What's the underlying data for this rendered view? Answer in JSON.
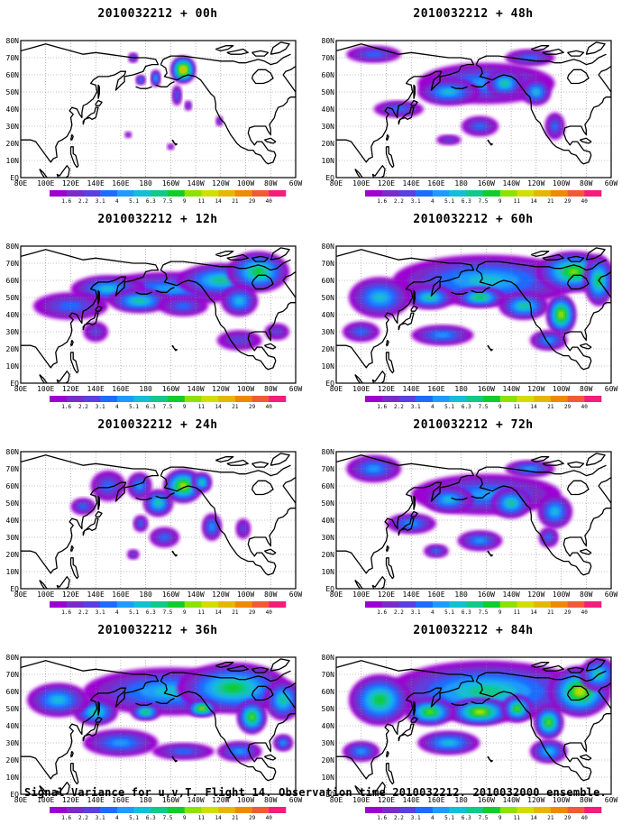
{
  "panels": [
    {
      "title": "2010032212 + 00h",
      "level": 0
    },
    {
      "title": "2010032212 + 48h",
      "level": 4
    },
    {
      "title": "2010032212 + 12h",
      "level": 1
    },
    {
      "title": "2010032212 + 60h",
      "level": 5
    },
    {
      "title": "2010032212 + 24h",
      "level": 2
    },
    {
      "title": "2010032212 + 72h",
      "level": 6
    },
    {
      "title": "2010032212 + 36h",
      "level": 3
    },
    {
      "title": "2010032212 + 84h",
      "level": 7
    }
  ],
  "lat_labels": [
    "80N",
    "70N",
    "60N",
    "50N",
    "40N",
    "30N",
    "20N",
    "10N",
    "EQ"
  ],
  "lon_labels": [
    "80E",
    "100E",
    "120E",
    "140E",
    "160E",
    "180",
    "160W",
    "140W",
    "120W",
    "100W",
    "80W",
    "60W"
  ],
  "colorbar": {
    "labels": [
      "1.6",
      "2.2",
      "3.1",
      "4",
      "5.1",
      "6.3",
      "7.5",
      "9",
      "11",
      "14",
      "21",
      "29",
      "40"
    ],
    "colors": [
      "#9c00d2",
      "#7b2cc8",
      "#5b3fe0",
      "#1f6bff",
      "#1f9bff",
      "#12c0d4",
      "#10c98a",
      "#11cc2d",
      "#8ce200",
      "#d2dd00",
      "#e4b800",
      "#ee8a00",
      "#f25a36",
      "#f31e7a"
    ]
  },
  "footer": "Signal Variance for u,v,T. Flight 14. Observation time 2010032212. 2010032000 ensemble."
}
